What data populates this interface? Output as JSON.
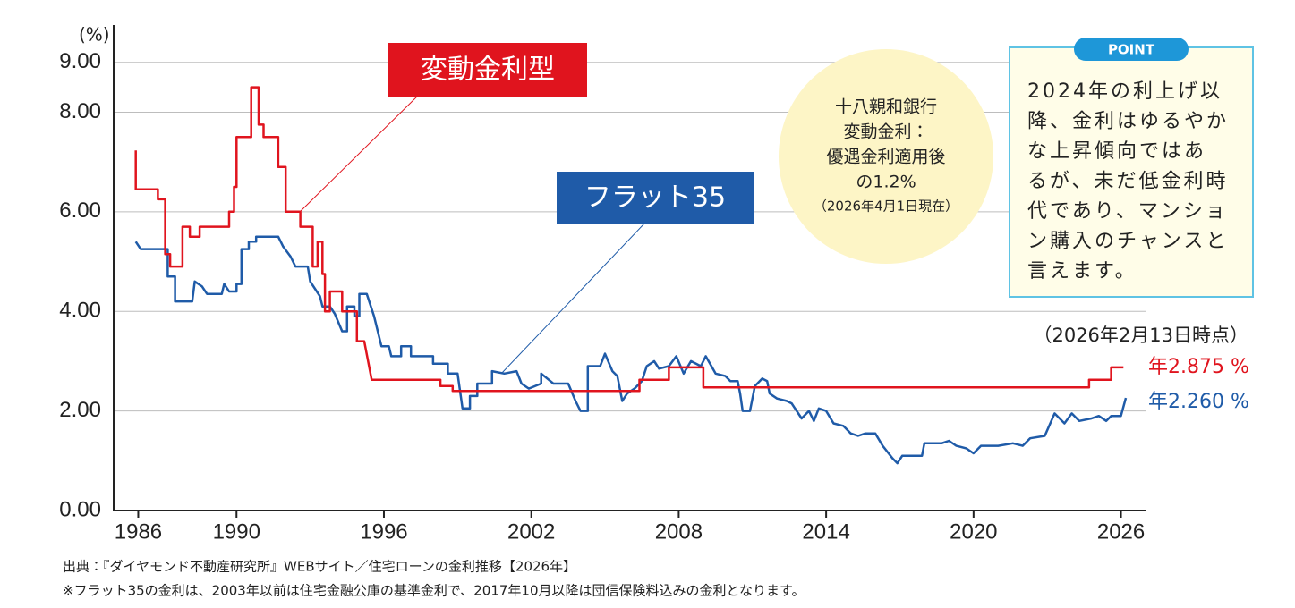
{
  "chart_data": {
    "type": "line",
    "y_unit": "(%)",
    "xlim": [
      1985,
      2027
    ],
    "ylim": [
      0,
      9.75
    ],
    "xticks": [
      1986,
      1990,
      1996,
      2002,
      2008,
      2014,
      2020,
      2026
    ],
    "yticks": [
      {
        "value": 0,
        "label": "0.00"
      },
      {
        "value": 2,
        "label": "2.00"
      },
      {
        "value": 4,
        "label": "4.00"
      },
      {
        "value": 6,
        "label": "6.00"
      },
      {
        "value": 8,
        "label": "8.00"
      },
      {
        "value": 9,
        "label": "9.00"
      }
    ],
    "grid": true,
    "as_of": "（2026年2月13日時点）",
    "series": [
      {
        "name": "変動金利型",
        "color": "#e0141e",
        "last_label": "年2.875 %",
        "x": [
          1985.9,
          1985.9,
          1986.8,
          1986.8,
          1987.1,
          1987.1,
          1987.3,
          1987.3,
          1987.8,
          1987.8,
          1988.1,
          1988.1,
          1988.5,
          1988.5,
          1989.7,
          1989.7,
          1989.9,
          1989.9,
          1990.0,
          1990.0,
          1990.6,
          1990.6,
          1990.9,
          1990.9,
          1991.1,
          1991.1,
          1991.7,
          1991.7,
          1992.0,
          1992.0,
          1992.6,
          1992.6,
          1993.1,
          1993.1,
          1993.3,
          1993.3,
          1993.5,
          1993.5,
          1993.6,
          1993.6,
          1993.8,
          1993.8,
          1994.3,
          1994.3,
          1994.9,
          1994.9,
          1995.2,
          1995.5,
          1998.3,
          1998.3,
          1998.8,
          1998.8,
          2006.4,
          2006.4,
          2007.6,
          2007.6,
          2009.0,
          2009.0,
          2024.7,
          2024.7,
          2025.6,
          2025.6,
          2026.1
        ],
        "values": [
          7.23,
          6.45,
          6.45,
          6.25,
          6.25,
          5.15,
          5.15,
          4.9,
          4.9,
          5.7,
          5.7,
          5.5,
          5.5,
          5.7,
          5.7,
          6.0,
          6.0,
          6.5,
          6.5,
          7.5,
          7.5,
          8.5,
          8.5,
          7.75,
          7.75,
          7.5,
          7.5,
          6.9,
          6.9,
          6.0,
          6.0,
          5.7,
          5.7,
          4.9,
          4.9,
          5.4,
          5.4,
          4.75,
          4.75,
          4.0,
          4.0,
          4.4,
          4.4,
          4.0,
          4.0,
          3.4,
          3.4,
          2.625,
          2.625,
          2.5,
          2.5,
          2.4,
          2.4,
          2.625,
          2.625,
          2.875,
          2.875,
          2.475,
          2.475,
          2.625,
          2.625,
          2.875,
          2.875
        ]
      },
      {
        "name": "フラット35",
        "color": "#1f5ba8",
        "last_label": "年2.260 %",
        "x": [
          1985.9,
          1986.1,
          1987.2,
          1987.2,
          1987.5,
          1987.5,
          1988.2,
          1988.3,
          1988.6,
          1988.8,
          1989.4,
          1989.5,
          1989.7,
          1990.0,
          1990.0,
          1990.2,
          1990.2,
          1990.5,
          1990.5,
          1990.8,
          1990.8,
          1991.7,
          1991.9,
          1992.2,
          1992.4,
          1992.9,
          1993.0,
          1993.4,
          1993.5,
          1993.8,
          1994.0,
          1994.3,
          1994.5,
          1994.5,
          1994.8,
          1994.8,
          1995.0,
          1995.0,
          1995.3,
          1995.6,
          1995.9,
          1996.2,
          1996.3,
          1996.7,
          1996.7,
          1997.1,
          1997.1,
          1998.0,
          1998.0,
          1998.6,
          1998.6,
          1999.0,
          1999.2,
          1999.5,
          1999.5,
          1999.8,
          1999.8,
          2000.4,
          2000.4,
          2000.9,
          2001.4,
          2001.6,
          2001.9,
          2002.4,
          2002.4,
          2002.9,
          2003.5,
          2003.8,
          2004.0,
          2004.3,
          2004.3,
          2004.8,
          2005.0,
          2005.3,
          2005.5,
          2005.7,
          2005.9,
          2006.2,
          2006.5,
          2006.7,
          2007.0,
          2007.2,
          2007.6,
          2007.9,
          2008.2,
          2008.5,
          2008.9,
          2009.1,
          2009.5,
          2009.9,
          2010.1,
          2010.4,
          2010.5,
          2010.6,
          2010.9,
          2011.1,
          2011.4,
          2011.6,
          2011.7,
          2012.0,
          2012.4,
          2012.6,
          2013.0,
          2013.3,
          2013.5,
          2013.7,
          2014.0,
          2014.3,
          2014.7,
          2015.0,
          2015.3,
          2015.6,
          2016.0,
          2016.3,
          2016.7,
          2016.9,
          2017.1,
          2017.5,
          2017.9,
          2018.0,
          2018.7,
          2019.0,
          2019.3,
          2019.7,
          2020.0,
          2020.3,
          2021.0,
          2021.6,
          2022.0,
          2022.3,
          2022.9,
          2023.3,
          2023.7,
          2024.0,
          2024.3,
          2024.8,
          2025.1,
          2025.4,
          2025.6,
          2026.0,
          2026.2
        ],
        "values": [
          5.4,
          5.25,
          5.25,
          4.7,
          4.7,
          4.2,
          4.2,
          4.6,
          4.5,
          4.35,
          4.35,
          4.55,
          4.4,
          4.4,
          4.55,
          4.55,
          5.25,
          5.25,
          5.4,
          5.4,
          5.5,
          5.5,
          5.3,
          5.1,
          4.9,
          4.9,
          4.6,
          4.3,
          4.1,
          4.1,
          3.95,
          3.6,
          3.6,
          4.1,
          4.1,
          3.9,
          3.9,
          4.35,
          4.35,
          3.9,
          3.3,
          3.3,
          3.1,
          3.1,
          3.3,
          3.3,
          3.1,
          3.1,
          2.95,
          2.95,
          2.75,
          2.75,
          2.05,
          2.05,
          2.3,
          2.3,
          2.55,
          2.55,
          2.8,
          2.75,
          2.8,
          2.55,
          2.45,
          2.55,
          2.75,
          2.55,
          2.55,
          2.2,
          2.0,
          2.0,
          2.9,
          2.9,
          3.15,
          2.8,
          2.7,
          2.2,
          2.35,
          2.45,
          2.6,
          2.9,
          3.0,
          2.85,
          2.9,
          3.1,
          2.75,
          3.0,
          2.9,
          3.1,
          2.75,
          2.7,
          2.6,
          2.6,
          2.35,
          2.0,
          2.0,
          2.5,
          2.65,
          2.6,
          2.35,
          2.25,
          2.2,
          2.15,
          1.85,
          2.0,
          1.8,
          2.05,
          2.0,
          1.75,
          1.7,
          1.55,
          1.5,
          1.55,
          1.55,
          1.3,
          1.05,
          0.95,
          1.1,
          1.1,
          1.1,
          1.35,
          1.35,
          1.4,
          1.3,
          1.25,
          1.15,
          1.3,
          1.3,
          1.35,
          1.3,
          1.45,
          1.5,
          1.95,
          1.75,
          1.95,
          1.8,
          1.85,
          1.9,
          1.8,
          1.9,
          1.9,
          2.26
        ]
      }
    ],
    "bubble": [
      "十八親和銀行",
      "変動金利：",
      "優遇金利適用後",
      "の1.2%",
      "（2026年4月1日現在）"
    ],
    "point": {
      "badge": "POINT",
      "lines": [
        "2024年の利上げ以",
        "降、金利はゆるやか",
        "な上昇傾向ではあ",
        "るが、未だ低金利時",
        "代であり、マンショ",
        "ン購入のチャンスと",
        "言えます。"
      ]
    },
    "notes": [
      "出典：『ダイヤモンド不動産研究所』WEBサイト／住宅ローンの金利推移【2026年】",
      "※フラット35の金利は、2003年以前は住宅金融公庫の基準金利で、2017年10月以降は団信保険料込みの金利となります。"
    ]
  }
}
